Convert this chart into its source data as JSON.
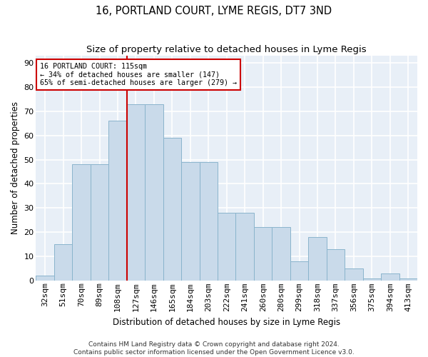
{
  "title": "16, PORTLAND COURT, LYME REGIS, DT7 3ND",
  "subtitle": "Size of property relative to detached houses in Lyme Regis",
  "xlabel": "Distribution of detached houses by size in Lyme Regis",
  "ylabel": "Number of detached properties",
  "categories": [
    "32sqm",
    "51sqm",
    "70sqm",
    "89sqm",
    "108sqm",
    "127sqm",
    "146sqm",
    "165sqm",
    "184sqm",
    "203sqm",
    "222sqm",
    "241sqm",
    "260sqm",
    "280sqm",
    "299sqm",
    "318sqm",
    "337sqm",
    "356sqm",
    "375sqm",
    "394sqm",
    "413sqm"
  ],
  "bar_heights": [
    2,
    15,
    48,
    48,
    66,
    73,
    73,
    59,
    49,
    49,
    28,
    28,
    22,
    22,
    8,
    18,
    13,
    5,
    1,
    3,
    1
  ],
  "bar_color": "#c9daea",
  "bar_edge_color": "#8ab4cc",
  "vline_color": "#cc0000",
  "annotation_line1": "16 PORTLAND COURT: 115sqm",
  "annotation_line2": "← 34% of detached houses are smaller (147)",
  "annotation_line3": "65% of semi-detached houses are larger (279) →",
  "annotation_box_color": "#ffffff",
  "annotation_box_edge": "#cc0000",
  "footer1": "Contains HM Land Registry data © Crown copyright and database right 2024.",
  "footer2": "Contains public sector information licensed under the Open Government Licence v3.0.",
  "ylim_max": 93,
  "yticks": [
    0,
    10,
    20,
    30,
    40,
    50,
    60,
    70,
    80,
    90
  ],
  "bg_color": "#e8eff7",
  "grid_color": "#ffffff",
  "title_fontsize": 10.5,
  "subtitle_fontsize": 9.5,
  "axis_label_fontsize": 8.5,
  "tick_fontsize": 8,
  "footer_fontsize": 6.5
}
